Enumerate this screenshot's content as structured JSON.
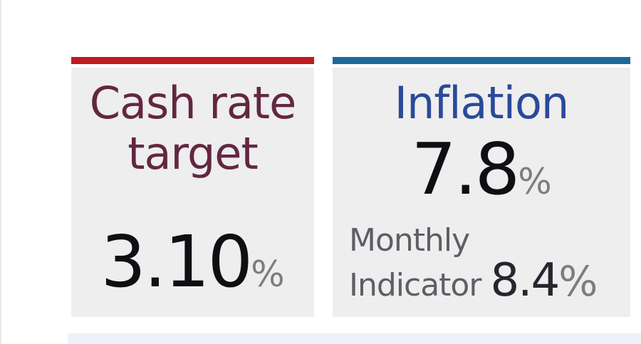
{
  "colors": {
    "card_background": "#eeeeee",
    "next_section_background": "#edf2fa",
    "big_number": "#0f0f13",
    "percent_gray": "#7d7d7d"
  },
  "cards": [
    {
      "id": "cash-rate",
      "title": "Cash rate target",
      "value": "3.10",
      "unit": "%",
      "accent_color": "#c01a21",
      "title_color": "#632740"
    },
    {
      "id": "inflation",
      "title": "Inflation",
      "value": "7.8",
      "unit": "%",
      "accent_color": "#20689a",
      "title_color": "#2a4a99",
      "monthly": {
        "line1": "Monthly",
        "line2": "Indicator",
        "value": "8.4",
        "unit": "%"
      }
    }
  ]
}
